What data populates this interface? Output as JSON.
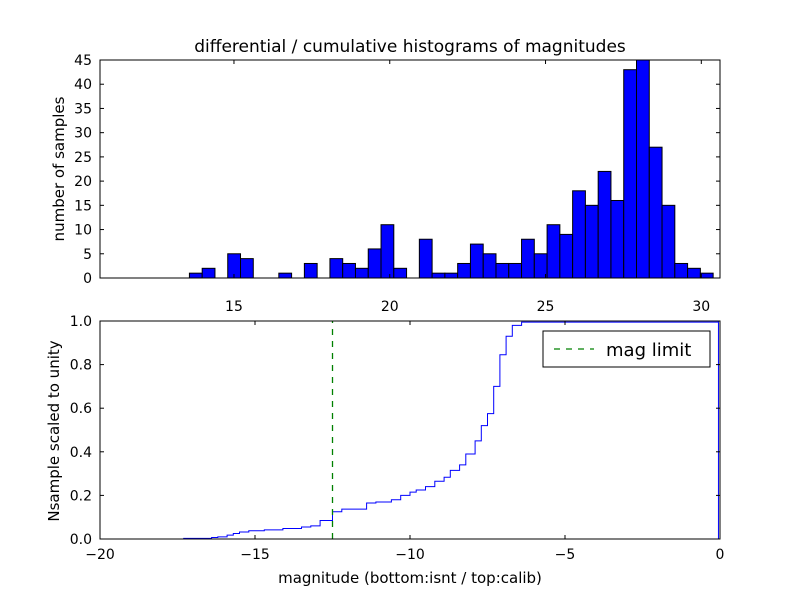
{
  "chart_data": [
    {
      "type": "bar",
      "title": "differential / cumulative histograms of magnitudes",
      "xlabel": "",
      "ylabel": "number of samples",
      "xlim": [
        10.7,
        30.6
      ],
      "ylim": [
        0,
        45
      ],
      "xticks": [
        "15",
        "20",
        "25",
        "30"
      ],
      "yticks": [
        "0",
        "5",
        "10",
        "15",
        "20",
        "25",
        "30",
        "35",
        "40",
        "45"
      ],
      "bin_width": 0.41,
      "bins": [
        {
          "x": 13.57,
          "value": 1
        },
        {
          "x": 13.98,
          "value": 2
        },
        {
          "x": 14.8,
          "value": 5
        },
        {
          "x": 15.21,
          "value": 4
        },
        {
          "x": 16.44,
          "value": 1
        },
        {
          "x": 17.26,
          "value": 3
        },
        {
          "x": 18.08,
          "value": 4
        },
        {
          "x": 18.49,
          "value": 3
        },
        {
          "x": 18.9,
          "value": 2
        },
        {
          "x": 19.31,
          "value": 6
        },
        {
          "x": 19.72,
          "value": 11
        },
        {
          "x": 20.13,
          "value": 2
        },
        {
          "x": 20.95,
          "value": 8
        },
        {
          "x": 21.36,
          "value": 1
        },
        {
          "x": 21.77,
          "value": 1
        },
        {
          "x": 22.18,
          "value": 3
        },
        {
          "x": 22.59,
          "value": 7
        },
        {
          "x": 23.0,
          "value": 5
        },
        {
          "x": 23.41,
          "value": 3
        },
        {
          "x": 23.82,
          "value": 3
        },
        {
          "x": 24.23,
          "value": 8
        },
        {
          "x": 24.64,
          "value": 5
        },
        {
          "x": 25.05,
          "value": 11
        },
        {
          "x": 25.46,
          "value": 9
        },
        {
          "x": 25.87,
          "value": 18
        },
        {
          "x": 26.28,
          "value": 15
        },
        {
          "x": 26.69,
          "value": 22
        },
        {
          "x": 27.1,
          "value": 16
        },
        {
          "x": 27.51,
          "value": 43
        },
        {
          "x": 27.92,
          "value": 45
        },
        {
          "x": 28.33,
          "value": 27
        },
        {
          "x": 28.74,
          "value": 15
        },
        {
          "x": 29.15,
          "value": 3
        },
        {
          "x": 29.56,
          "value": 2
        },
        {
          "x": 29.97,
          "value": 1
        }
      ],
      "bar_color": "#0000ff"
    },
    {
      "type": "line",
      "title": "",
      "xlabel": "magnitude (bottom:isnt / top:calib)",
      "ylabel": "Nsample scaled to unity",
      "xlim": [
        -20,
        0
      ],
      "ylim": [
        0,
        1
      ],
      "xticks": [
        "−20",
        "−15",
        "−10",
        "−5",
        "0"
      ],
      "yticks": [
        "0.0",
        "0.2",
        "0.4",
        "0.6",
        "0.8",
        "1.0"
      ],
      "legend": {
        "position": "top-right",
        "entries": [
          "mag limit"
        ]
      },
      "series": [
        {
          "style": "step",
          "color": "#0000ff",
          "x": [
            -20,
            -17.3,
            -16.4,
            -16.2,
            -15.9,
            -15.7,
            -15.5,
            -15.2,
            -14.7,
            -14.1,
            -13.5,
            -13.2,
            -12.9,
            -12.5,
            -12.2,
            -11.4,
            -11.1,
            -10.6,
            -10.3,
            -10.0,
            -9.8,
            -9.5,
            -9.2,
            -8.9,
            -8.7,
            -8.4,
            -8.2,
            -7.9,
            -7.7,
            -7.5,
            -7.3,
            -7.1,
            -6.9,
            -6.7,
            -6.4,
            -0.05
          ],
          "y": [
            0,
            0.003,
            0.007,
            0.01,
            0.018,
            0.025,
            0.032,
            0.038,
            0.042,
            0.048,
            0.055,
            0.06,
            0.085,
            0.125,
            0.137,
            0.165,
            0.17,
            0.18,
            0.2,
            0.215,
            0.225,
            0.24,
            0.265,
            0.283,
            0.315,
            0.34,
            0.39,
            0.45,
            0.52,
            0.575,
            0.7,
            0.845,
            0.93,
            0.98,
            0.995,
            1.0
          ]
        },
        {
          "name": "mag limit",
          "style": "dashed",
          "color": "#008000",
          "x": [
            -12.5,
            -12.5
          ],
          "y": [
            0,
            1
          ]
        }
      ]
    }
  ]
}
